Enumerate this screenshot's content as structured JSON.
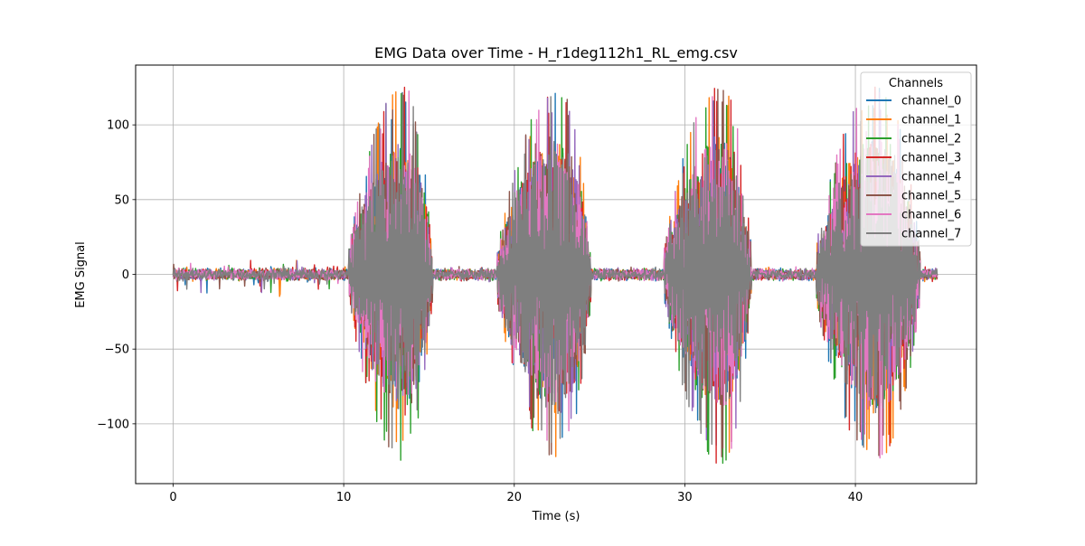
{
  "chart_data": {
    "type": "line",
    "title": "EMG Data over Time - H_r1deg112h1_RL_emg.csv",
    "xlabel": "Time (s)",
    "ylabel": "EMG Signal",
    "xlim": [
      -2.2,
      47.1
    ],
    "ylim": [
      -140,
      140
    ],
    "xticks": [
      0,
      10,
      20,
      30,
      40
    ],
    "xtick_labels": [
      "0",
      "10",
      "20",
      "30",
      "40"
    ],
    "yticks": [
      -100,
      -50,
      0,
      50,
      100
    ],
    "ytick_labels": [
      "−100",
      "−50",
      "0",
      "50",
      "100"
    ],
    "grid": true,
    "legend": {
      "title": "Channels",
      "placement": "top-right"
    },
    "time_span": [
      0,
      44.8
    ],
    "baseline_amplitude": 3,
    "bursts": [
      {
        "start": 10.3,
        "end": 15.2,
        "peak": 13.6,
        "max": 127,
        "min": -125
      },
      {
        "start": 19.0,
        "end": 24.5,
        "peak": 22.6,
        "max": 127,
        "min": -128
      },
      {
        "start": 28.8,
        "end": 33.9,
        "peak": 32.2,
        "max": 123,
        "min": -128
      },
      {
        "start": 37.7,
        "end": 43.8,
        "peak": 41.3,
        "max": 92,
        "min": -128
      }
    ],
    "series": [
      {
        "name": "channel_0",
        "color": "#1f77b4"
      },
      {
        "name": "channel_1",
        "color": "#ff7f0e"
      },
      {
        "name": "channel_2",
        "color": "#2ca02c"
      },
      {
        "name": "channel_3",
        "color": "#d62728"
      },
      {
        "name": "channel_4",
        "color": "#9467bd"
      },
      {
        "name": "channel_5",
        "color": "#8c564b"
      },
      {
        "name": "channel_6",
        "color": "#e377c2"
      },
      {
        "name": "channel_7",
        "color": "#7f7f7f"
      }
    ]
  }
}
